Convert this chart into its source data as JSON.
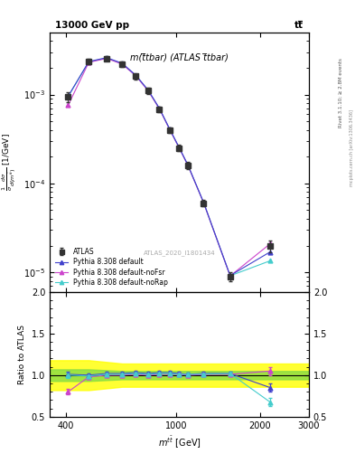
{
  "title_left": "13000 GeV pp",
  "title_right": "tt̅",
  "main_title": "m(t̅tbar) (ATLAS t̅tbar)",
  "watermark": "ATLAS_2020_I1801434",
  "right_label": "Rivet 3.1.10; ≥ 2.8M events",
  "mcplots_label": "mcplots.cern.ch [arXiv:1306.3436]",
  "xlabel": "m$^{t\\bar{t}}$ [GeV]",
  "ylabel": "1/σ dσ/d(m$^{t\\bar{t}}$) [1/GeV]",
  "ratio_ylabel": "Ratio to ATLAS",
  "x_data": [
    408.0,
    484.0,
    561.0,
    638.0,
    715.0,
    792.0,
    869.0,
    946.0,
    1023.0,
    1100.0,
    1254.0,
    1562.0,
    2178.0
  ],
  "atlas_y": [
    0.00095,
    0.00235,
    0.00255,
    0.0022,
    0.0016,
    0.0011,
    0.00068,
    0.0004,
    0.00025,
    0.00016,
    6e-05,
    9e-06,
    2e-05
  ],
  "atlas_yerr_lo": [
    0.00012,
    0.00015,
    0.00015,
    0.00014,
    0.00011,
    8e-05,
    5e-05,
    3e-05,
    2e-05,
    1.4e-05,
    5e-06,
    1e-06,
    3e-06
  ],
  "atlas_yerr_hi": [
    0.00012,
    0.00015,
    0.00015,
    0.00014,
    0.00011,
    8e-05,
    5e-05,
    3e-05,
    2e-05,
    1.4e-05,
    5e-06,
    1e-06,
    3e-06
  ],
  "pythia_default_y": [
    0.00096,
    0.00235,
    0.0026,
    0.00225,
    0.00165,
    0.00112,
    0.0007,
    0.00041,
    0.000255,
    0.000162,
    6.1e-05,
    9.2e-06,
    1.7e-05
  ],
  "pythia_noFsr_y": [
    0.00076,
    0.0023,
    0.00255,
    0.0022,
    0.00162,
    0.0011,
    0.00069,
    0.000405,
    0.000252,
    0.00016,
    6.05e-05,
    9.1e-06,
    2.1e-05
  ],
  "pythia_noRap_y": [
    0.00095,
    0.00233,
    0.00258,
    0.00222,
    0.00163,
    0.00111,
    0.000695,
    0.000408,
    0.000253,
    0.000161,
    6.08e-05,
    9.15e-06,
    1.35e-05
  ],
  "ratio_default": [
    1.01,
    1.0,
    1.02,
    1.02,
    1.03,
    1.02,
    1.03,
    1.03,
    1.02,
    1.01,
    1.02,
    1.02,
    0.85
  ],
  "ratio_noFsr": [
    0.8,
    0.98,
    1.0,
    1.0,
    1.01,
    1.0,
    1.01,
    1.01,
    1.01,
    1.0,
    1.008,
    1.01,
    1.05
  ],
  "ratio_noRap": [
    1.0,
    0.99,
    1.01,
    1.01,
    1.02,
    1.01,
    1.02,
    1.02,
    1.01,
    1.01,
    1.013,
    1.02,
    0.675
  ],
  "ratio_default_err": [
    0.03,
    0.02,
    0.02,
    0.02,
    0.02,
    0.02,
    0.02,
    0.02,
    0.02,
    0.02,
    0.02,
    0.02,
    0.05
  ],
  "ratio_noFsr_err": [
    0.03,
    0.02,
    0.02,
    0.02,
    0.02,
    0.02,
    0.02,
    0.02,
    0.02,
    0.02,
    0.02,
    0.02,
    0.05
  ],
  "ratio_noRap_err": [
    0.03,
    0.02,
    0.02,
    0.02,
    0.02,
    0.02,
    0.02,
    0.02,
    0.02,
    0.02,
    0.02,
    0.02,
    0.05
  ],
  "band_x": [
    350,
    484,
    638,
    869,
    1254,
    1870,
    3000
  ],
  "band_green_lo": [
    0.93,
    0.93,
    0.95,
    0.95,
    0.95,
    0.95,
    0.95
  ],
  "band_green_hi": [
    1.07,
    1.07,
    1.05,
    1.05,
    1.05,
    1.05,
    1.05
  ],
  "band_yellow_lo": [
    0.82,
    0.82,
    0.86,
    0.86,
    0.86,
    0.86,
    0.86
  ],
  "band_yellow_hi": [
    1.18,
    1.18,
    1.14,
    1.14,
    1.14,
    1.14,
    1.14
  ],
  "color_default": "#4040cc",
  "color_noFsr": "#cc44cc",
  "color_noRap": "#44cccc",
  "color_atlas": "#333333",
  "xlim": [
    350,
    3000
  ],
  "ylim_main": [
    6e-06,
    0.005
  ],
  "ylim_ratio": [
    0.5,
    2.0
  ]
}
